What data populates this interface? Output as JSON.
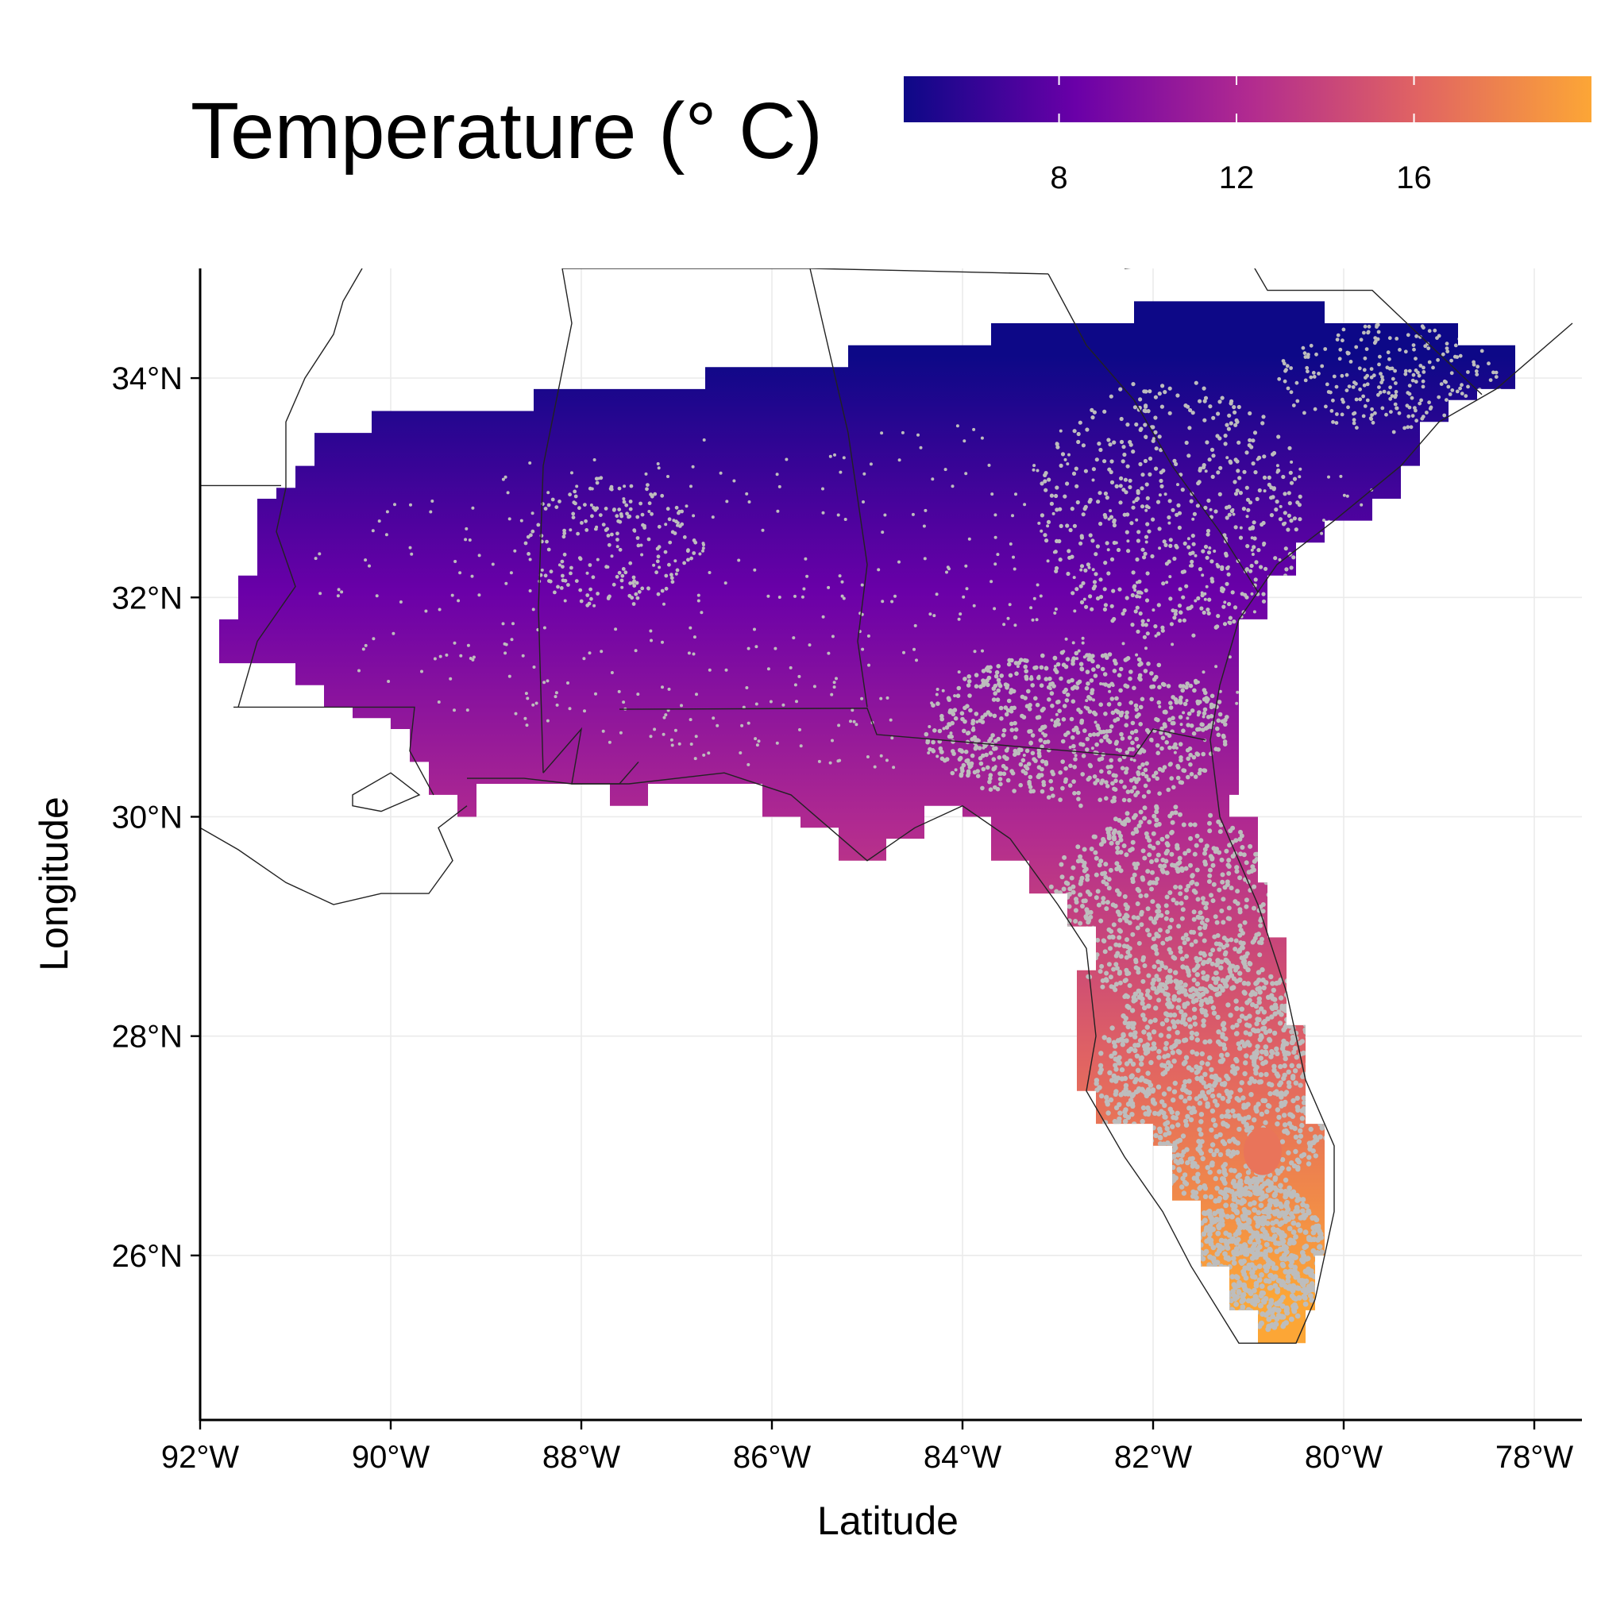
{
  "legend": {
    "title": "Temperature (° C)",
    "ticks": [
      {
        "value": 8,
        "label": "8"
      },
      {
        "value": 12,
        "label": "12"
      },
      {
        "value": 16,
        "label": "16"
      }
    ],
    "range": [
      4.5,
      20
    ],
    "palette": [
      "#0d0887",
      "#6a00a8",
      "#b12a90",
      "#e16462",
      "#fca636"
    ]
  },
  "x_axis": {
    "title": "Latitude",
    "range": [
      -92,
      -77.5
    ],
    "ticks": [
      {
        "value": -92,
        "label": "92°W"
      },
      {
        "value": -90,
        "label": "90°W"
      },
      {
        "value": -88,
        "label": "88°W"
      },
      {
        "value": -86,
        "label": "86°W"
      },
      {
        "value": -84,
        "label": "84°W"
      },
      {
        "value": -82,
        "label": "82°W"
      },
      {
        "value": -80,
        "label": "80°W"
      },
      {
        "value": -78,
        "label": "78°W"
      }
    ]
  },
  "y_axis": {
    "title": "Longitude",
    "range": [
      24.5,
      35
    ],
    "ticks": [
      {
        "value": 34,
        "label": "34°N"
      },
      {
        "value": 32,
        "label": "32°N"
      },
      {
        "value": 30,
        "label": "30°N"
      },
      {
        "value": 28,
        "label": "28°N"
      },
      {
        "value": 26,
        "label": "26°N"
      }
    ]
  },
  "map": {
    "raster_variable": "Temperature (° C)",
    "grid_lines": true,
    "occurrence_point_color": "#bdbdbd",
    "boundary_color": "#222222",
    "region": "Southeastern United States (LA, MS, AL, GA, FL, SC)"
  }
}
